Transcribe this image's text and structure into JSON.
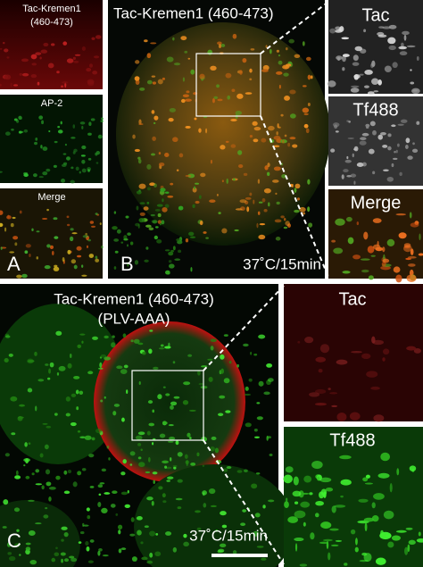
{
  "panel_a": {
    "letter": "A",
    "images": [
      {
        "label": [
          "Tac-Kremen1",
          "(460-473)"
        ]
      },
      {
        "label": [
          "AP-2"
        ]
      },
      {
        "label": [
          "Merge"
        ]
      }
    ]
  },
  "panel_b": {
    "letter": "B",
    "title": "Tac-Kremen1 (460-473)",
    "condition": "37˚C/15min",
    "insets": [
      "Tac",
      "Tf488",
      "Merge"
    ]
  },
  "panel_c": {
    "letter": "C",
    "title": [
      "Tac-Kremen1 (460-473)",
      "(PLV-AAA)"
    ],
    "condition": "37˚C/15min",
    "insets": [
      "Tac",
      "Tf488"
    ]
  }
}
